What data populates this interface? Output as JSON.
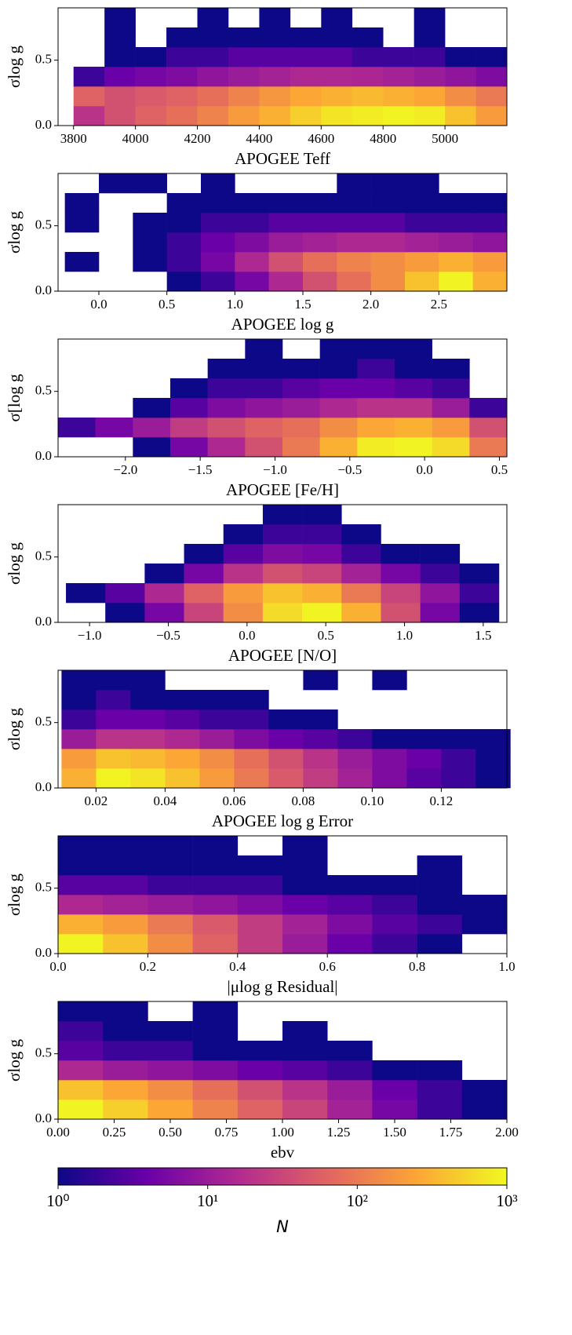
{
  "chart_data": [
    {
      "type": "hist2d",
      "x_label": "APOGEE Teff",
      "y_label": "σlog g",
      "xlim": [
        3750,
        5200
      ],
      "ylim": [
        0,
        0.9
      ],
      "xticks": [
        3800,
        4000,
        4200,
        4400,
        4600,
        4800,
        5000
      ],
      "yticks": [
        {
          "value": 0,
          "label": "0.0"
        },
        {
          "value": 0.5,
          "label": "0.5"
        }
      ],
      "x_edges": [
        3800,
        3900,
        4000,
        4100,
        4200,
        4300,
        4400,
        4500,
        4600,
        4700,
        4800,
        4900,
        5000,
        5100,
        5200
      ],
      "y_edges": [
        0,
        0.15,
        0.3,
        0.45,
        0.6,
        0.75,
        0.9
      ],
      "counts": [
        [
          20,
          40,
          60,
          80,
          120,
          200,
          300,
          500,
          700,
          800,
          900,
          800,
          400,
          200
        ],
        [
          60,
          40,
          50,
          60,
          80,
          120,
          180,
          250,
          300,
          350,
          300,
          250,
          150,
          100
        ],
        [
          2,
          4,
          5,
          6,
          8,
          10,
          12,
          15,
          15,
          14,
          12,
          10,
          8,
          6
        ],
        [
          0,
          1,
          1,
          2,
          2,
          3,
          3,
          3,
          3,
          2,
          2,
          2,
          1,
          1
        ],
        [
          0,
          1,
          0,
          1,
          1,
          1,
          1,
          1,
          1,
          1,
          0,
          1,
          0,
          0
        ],
        [
          0,
          1,
          0,
          0,
          1,
          0,
          1,
          0,
          1,
          0,
          0,
          1,
          0,
          0
        ]
      ]
    },
    {
      "type": "hist2d",
      "x_label": "APOGEE log g",
      "y_label": "σlog g",
      "xlim": [
        -0.3,
        3.0
      ],
      "ylim": [
        0,
        0.9
      ],
      "xticks": [
        {
          "value": 0,
          "label": "0.0"
        },
        0.5,
        {
          "value": 1,
          "label": "1.0"
        },
        1.5,
        {
          "value": 2,
          "label": "2.0"
        },
        2.5
      ],
      "yticks": [
        {
          "value": 0,
          "label": "0.0"
        },
        {
          "value": 0.5,
          "label": "0.5"
        }
      ],
      "x_edges": [
        -0.25,
        0,
        0.25,
        0.5,
        0.75,
        1,
        1.25,
        1.5,
        1.75,
        2,
        2.25,
        2.5,
        2.75,
        3
      ],
      "y_edges": [
        0,
        0.15,
        0.3,
        0.45,
        0.6,
        0.75,
        0.9
      ],
      "counts": [
        [
          0,
          0,
          0,
          1,
          2,
          5,
          15,
          40,
          80,
          150,
          400,
          900,
          300
        ],
        [
          1,
          0,
          1,
          2,
          5,
          15,
          40,
          80,
          120,
          150,
          200,
          300,
          200
        ],
        [
          0,
          0,
          1,
          2,
          4,
          6,
          10,
          12,
          15,
          15,
          12,
          10,
          8
        ],
        [
          1,
          0,
          1,
          1,
          2,
          2,
          3,
          3,
          3,
          3,
          2,
          2,
          2
        ],
        [
          1,
          0,
          0,
          1,
          1,
          1,
          1,
          1,
          1,
          1,
          1,
          1,
          1
        ],
        [
          0,
          1,
          1,
          0,
          1,
          0,
          0,
          0,
          1,
          1,
          1,
          0,
          0
        ]
      ]
    },
    {
      "type": "hist2d",
      "x_label": "APOGEE [Fe/H]",
      "y_label": "σ[log g",
      "xlim": [
        -2.45,
        0.55
      ],
      "ylim": [
        0,
        0.9
      ],
      "xticks": [
        {
          "value": -2,
          "label": "−2.0"
        },
        {
          "value": -1.5,
          "label": "−1.5"
        },
        {
          "value": -1,
          "label": "−1.0"
        },
        {
          "value": -0.5,
          "label": "−0.5"
        },
        {
          "value": 0,
          "label": "0.0"
        },
        0.5
      ],
      "yticks": [
        {
          "value": 0,
          "label": "0.0"
        },
        {
          "value": 0.5,
          "label": "0.5"
        }
      ],
      "x_edges": [
        -2.45,
        -2.2,
        -1.95,
        -1.7,
        -1.45,
        -1.2,
        -0.95,
        -0.7,
        -0.45,
        -0.2,
        0.05,
        0.3,
        0.55
      ],
      "y_edges": [
        0,
        0.15,
        0.3,
        0.45,
        0.6,
        0.75,
        0.9
      ],
      "counts": [
        [
          0,
          0,
          1,
          5,
          15,
          40,
          100,
          300,
          800,
          900,
          600,
          100
        ],
        [
          2,
          5,
          10,
          25,
          40,
          60,
          80,
          150,
          250,
          300,
          200,
          40
        ],
        [
          0,
          0,
          1,
          3,
          6,
          8,
          10,
          15,
          20,
          20,
          10,
          2
        ],
        [
          0,
          0,
          0,
          1,
          2,
          2,
          3,
          4,
          4,
          3,
          2,
          0
        ],
        [
          0,
          0,
          0,
          0,
          1,
          1,
          1,
          1,
          2,
          1,
          1,
          0
        ],
        [
          0,
          0,
          0,
          0,
          0,
          1,
          0,
          1,
          1,
          1,
          0,
          0
        ]
      ]
    },
    {
      "type": "hist2d",
      "x_label": "APOGEE [N/O]",
      "y_label": "σlog g",
      "xlim": [
        -1.2,
        1.65
      ],
      "ylim": [
        0,
        0.9
      ],
      "xticks": [
        {
          "value": -1,
          "label": "−1.0"
        },
        {
          "value": -0.5,
          "label": "−0.5"
        },
        {
          "value": 0,
          "label": "0.0"
        },
        0.5,
        {
          "value": 1,
          "label": "1.0"
        },
        1.5
      ],
      "yticks": [
        {
          "value": 0,
          "label": "0.0"
        },
        {
          "value": 0.5,
          "label": "0.5"
        }
      ],
      "x_edges": [
        -1.15,
        -0.9,
        -0.65,
        -0.4,
        -0.15,
        0.1,
        0.35,
        0.6,
        0.85,
        1.1,
        1.35,
        1.6
      ],
      "y_edges": [
        0,
        0.15,
        0.3,
        0.45,
        0.6,
        0.75,
        0.9
      ],
      "counts": [
        [
          0,
          1,
          5,
          30,
          150,
          600,
          900,
          300,
          40,
          5,
          1
        ],
        [
          1,
          3,
          15,
          60,
          200,
          400,
          300,
          100,
          30,
          8,
          2
        ],
        [
          0,
          0,
          1,
          5,
          20,
          40,
          30,
          12,
          5,
          2,
          1
        ],
        [
          0,
          0,
          0,
          1,
          3,
          6,
          5,
          2,
          1,
          1,
          0
        ],
        [
          0,
          0,
          0,
          0,
          1,
          2,
          2,
          1,
          0,
          0,
          0
        ],
        [
          0,
          0,
          0,
          0,
          0,
          1,
          1,
          0,
          0,
          0,
          0
        ]
      ]
    },
    {
      "type": "hist2d",
      "x_label": "APOGEE log g Error",
      "y_label": "σlog g",
      "xlim": [
        0.009,
        0.139
      ],
      "ylim": [
        0,
        0.9
      ],
      "xticks": [
        0.02,
        0.04,
        0.06,
        0.08,
        {
          "value": 0.1,
          "label": "0.10"
        },
        0.12
      ],
      "yticks": [
        {
          "value": 0,
          "label": "0.0"
        },
        {
          "value": 0.5,
          "label": "0.5"
        }
      ],
      "x_edges": [
        0.01,
        0.02,
        0.03,
        0.04,
        0.05,
        0.06,
        0.07,
        0.08,
        0.09,
        0.1,
        0.11,
        0.12,
        0.13,
        0.14
      ],
      "y_edges": [
        0,
        0.15,
        0.3,
        0.45,
        0.6,
        0.75,
        0.9
      ],
      "counts": [
        [
          300,
          900,
          700,
          400,
          200,
          100,
          50,
          25,
          12,
          6,
          3,
          2,
          1
        ],
        [
          200,
          400,
          350,
          250,
          150,
          80,
          40,
          20,
          10,
          6,
          4,
          2,
          1
        ],
        [
          10,
          20,
          20,
          15,
          10,
          6,
          4,
          3,
          2,
          1,
          1,
          1,
          1
        ],
        [
          2,
          4,
          4,
          3,
          2,
          2,
          1,
          1,
          0,
          0,
          0,
          0,
          0
        ],
        [
          1,
          2,
          1,
          1,
          1,
          1,
          0,
          0,
          0,
          0,
          0,
          0,
          0
        ],
        [
          1,
          1,
          1,
          0,
          0,
          0,
          0,
          1,
          0,
          1,
          0,
          0,
          0
        ]
      ]
    },
    {
      "type": "hist2d",
      "x_label": "|μlog g Residual|",
      "y_label": "σlog g",
      "xlim": [
        0,
        1
      ],
      "ylim": [
        0,
        0.9
      ],
      "xticks": [
        {
          "value": 0,
          "label": "0.0"
        },
        0.2,
        0.4,
        0.6,
        0.8,
        {
          "value": 1,
          "label": "1.0"
        }
      ],
      "yticks": [
        {
          "value": 0,
          "label": "0.0"
        },
        {
          "value": 0.5,
          "label": "0.5"
        }
      ],
      "x_edges": [
        0,
        0.1,
        0.2,
        0.3,
        0.4,
        0.5,
        0.6,
        0.7,
        0.8,
        0.9,
        1
      ],
      "y_edges": [
        0,
        0.15,
        0.3,
        0.45,
        0.6,
        0.75,
        0.9
      ],
      "counts": [
        [
          900,
          400,
          150,
          60,
          25,
          10,
          4,
          2,
          1,
          0
        ],
        [
          300,
          200,
          100,
          50,
          25,
          12,
          6,
          3,
          2,
          1
        ],
        [
          15,
          12,
          10,
          8,
          6,
          4,
          3,
          2,
          1,
          1
        ],
        [
          3,
          3,
          2,
          2,
          2,
          1,
          1,
          1,
          1,
          0
        ],
        [
          1,
          1,
          1,
          1,
          1,
          1,
          0,
          0,
          1,
          0
        ],
        [
          1,
          1,
          1,
          1,
          0,
          1,
          0,
          0,
          0,
          0
        ]
      ]
    },
    {
      "type": "hist2d",
      "x_label": "ebv",
      "y_label": "σlog g",
      "xlim": [
        0,
        2
      ],
      "ylim": [
        0,
        0.9
      ],
      "xticks": [
        {
          "value": 0,
          "label": "0.00"
        },
        0.25,
        {
          "value": 0.5,
          "label": "0.50"
        },
        0.75,
        {
          "value": 1,
          "label": "1.00"
        },
        1.25,
        {
          "value": 1.5,
          "label": "1.50"
        },
        1.75,
        {
          "value": 2,
          "label": "2.00"
        }
      ],
      "yticks": [
        {
          "value": 0,
          "label": "0.0"
        },
        {
          "value": 0.5,
          "label": "0.5"
        }
      ],
      "x_edges": [
        0,
        0.2,
        0.4,
        0.6,
        0.8,
        1,
        1.2,
        1.4,
        1.6,
        1.8,
        2
      ],
      "y_edges": [
        0,
        0.15,
        0.3,
        0.45,
        0.6,
        0.75,
        0.9
      ],
      "counts": [
        [
          900,
          500,
          250,
          120,
          60,
          30,
          12,
          5,
          2,
          1
        ],
        [
          400,
          250,
          150,
          80,
          40,
          20,
          10,
          4,
          2,
          1
        ],
        [
          15,
          10,
          8,
          6,
          4,
          3,
          2,
          1,
          1,
          0
        ],
        [
          3,
          2,
          2,
          1,
          1,
          1,
          1,
          0,
          0,
          0
        ],
        [
          2,
          1,
          1,
          1,
          0,
          1,
          0,
          0,
          0,
          0
        ],
        [
          1,
          1,
          0,
          1,
          0,
          0,
          0,
          0,
          0,
          0
        ]
      ]
    },
    {
      "type": "colorbar",
      "label": "N",
      "log_scale": true,
      "clim": [
        1,
        1000
      ],
      "ticks": [
        {
          "value": 1,
          "label": "10⁰"
        },
        {
          "value": 10,
          "label": "10¹"
        },
        {
          "value": 100,
          "label": "10²"
        },
        {
          "value": 1000,
          "label": "10³"
        }
      ],
      "colormap": [
        "#0d0887",
        "#6a00a8",
        "#b12a90",
        "#e16462",
        "#fca636",
        "#f0f921"
      ]
    }
  ]
}
